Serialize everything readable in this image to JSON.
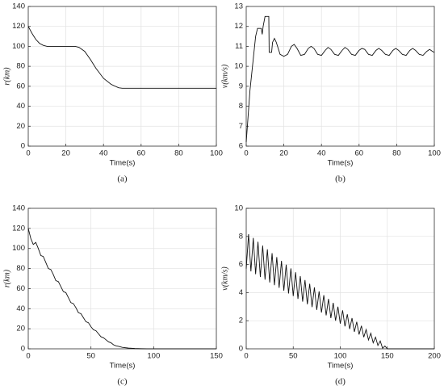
{
  "chart_data": [
    {
      "type": "line",
      "caption": "(a)",
      "xlabel": "Time(s)",
      "ylabel": "r(km)",
      "color": "#111111",
      "grid": true,
      "xlim": [
        0,
        100
      ],
      "ylim": [
        0,
        140
      ],
      "xticks": [
        0,
        20,
        40,
        60,
        80,
        100
      ],
      "yticks": [
        0,
        20,
        40,
        60,
        80,
        100,
        120,
        140
      ],
      "x": [
        0,
        2,
        4,
        6,
        8,
        10,
        15,
        20,
        25,
        27,
        30,
        33,
        36,
        40,
        44,
        48,
        50,
        55,
        60,
        70,
        80,
        90,
        100
      ],
      "values": [
        120,
        113,
        107,
        103,
        101,
        100,
        100,
        100,
        100,
        99,
        95,
        87,
        78,
        68,
        62,
        58.5,
        58,
        58,
        58,
        58,
        58,
        58,
        58
      ]
    },
    {
      "type": "line",
      "caption": "(b)",
      "xlabel": "Time(s)",
      "ylabel": "v(km/s)",
      "color": "#111111",
      "grid": true,
      "xlim": [
        0,
        100
      ],
      "ylim": [
        6,
        13
      ],
      "xticks": [
        0,
        20,
        40,
        60,
        80,
        100
      ],
      "yticks": [
        6,
        7,
        8,
        9,
        10,
        11,
        12,
        13
      ],
      "x": [
        0,
        2,
        4,
        5,
        6,
        8,
        8.5,
        9,
        10,
        12,
        12.2,
        13.5,
        14,
        15,
        16,
        18,
        20,
        22,
        24,
        25.5,
        27,
        29,
        31,
        33,
        34.5,
        36,
        38,
        40,
        42,
        43.5,
        45,
        47,
        49,
        51,
        52.5,
        54,
        56,
        58,
        60,
        61.5,
        63,
        65,
        67,
        69,
        70.5,
        72,
        74,
        76,
        78,
        79.5,
        81,
        83,
        85,
        87,
        88.5,
        90,
        92,
        94,
        96,
        97.5,
        99,
        100
      ],
      "values": [
        6.2,
        8.8,
        10.6,
        11.5,
        11.9,
        11.9,
        11.6,
        12.0,
        12.5,
        12.5,
        10.7,
        10.7,
        11.2,
        11.4,
        11.2,
        10.6,
        10.5,
        10.6,
        11.0,
        11.1,
        10.9,
        10.55,
        10.6,
        10.9,
        11.0,
        10.9,
        10.6,
        10.55,
        10.8,
        10.95,
        10.85,
        10.6,
        10.55,
        10.8,
        10.95,
        10.85,
        10.6,
        10.55,
        10.8,
        10.9,
        10.85,
        10.6,
        10.55,
        10.8,
        10.9,
        10.8,
        10.6,
        10.55,
        10.8,
        10.9,
        10.8,
        10.6,
        10.55,
        10.8,
        10.9,
        10.8,
        10.6,
        10.55,
        10.75,
        10.85,
        10.75,
        10.7
      ]
    },
    {
      "type": "line",
      "caption": "(c)",
      "xlabel": "Time(s)",
      "ylabel": "r(km)",
      "color": "#111111",
      "grid": true,
      "xlim": [
        0,
        150
      ],
      "ylim": [
        0,
        140
      ],
      "xticks": [
        0,
        50,
        100,
        150
      ],
      "yticks": [
        0,
        20,
        40,
        60,
        80,
        100,
        120,
        140
      ],
      "x": [
        0,
        2,
        4,
        6,
        8,
        10,
        12,
        14,
        16,
        18,
        20,
        22,
        24,
        26,
        28,
        30,
        32,
        34,
        36,
        38,
        40,
        42,
        44,
        46,
        48,
        50,
        52,
        54,
        56,
        58,
        60,
        62,
        64,
        66,
        68,
        70,
        72,
        75,
        80,
        85,
        90,
        95,
        150
      ],
      "values": [
        120,
        110,
        104,
        106,
        100,
        93,
        92,
        86,
        80,
        79,
        74,
        68,
        67,
        62,
        57,
        56,
        51,
        46,
        45,
        41,
        36,
        35,
        31,
        27,
        26,
        22,
        19,
        18,
        15,
        12,
        11,
        9,
        7,
        6,
        4,
        3,
        2.5,
        1.5,
        0.7,
        0.3,
        0.1,
        0,
        0
      ]
    },
    {
      "type": "line",
      "caption": "(d)",
      "xlabel": "Time(s)",
      "ylabel": "v(km/s)",
      "color": "#111111",
      "grid": true,
      "xlim": [
        0,
        200
      ],
      "ylim": [
        0,
        10
      ],
      "xticks": [
        0,
        50,
        100,
        150,
        200
      ],
      "yticks": [
        0,
        2,
        4,
        6,
        8,
        10
      ],
      "x": [
        0,
        2.5,
        5,
        7.5,
        10,
        12.5,
        15,
        17.5,
        20,
        22.5,
        25,
        27.5,
        30,
        32.5,
        35,
        37.5,
        40,
        42.5,
        45,
        47.5,
        50,
        52.5,
        55,
        57.5,
        60,
        62.5,
        65,
        67.5,
        70,
        72.5,
        75,
        77.5,
        80,
        82.5,
        85,
        87.5,
        90,
        92.5,
        95,
        97.5,
        100,
        102.5,
        105,
        107.5,
        110,
        112.5,
        115,
        117.5,
        120,
        122.5,
        125,
        127.5,
        130,
        132.5,
        135,
        137.5,
        140,
        142.5,
        145,
        147.5,
        150,
        200
      ],
      "values": [
        5.7,
        8.16,
        5.51,
        7.89,
        5.31,
        7.62,
        5.11,
        7.35,
        4.92,
        7.08,
        4.72,
        6.81,
        4.53,
        6.53,
        4.34,
        6.26,
        4.14,
        5.99,
        3.94,
        5.72,
        3.75,
        5.45,
        3.55,
        5.18,
        3.36,
        4.9,
        3.17,
        4.63,
        2.97,
        4.37,
        2.77,
        4.09,
        2.58,
        3.82,
        2.38,
        3.55,
        2.19,
        3.27,
        2.0,
        3.0,
        1.79,
        2.74,
        1.6,
        2.46,
        1.41,
        2.19,
        1.21,
        1.92,
        1.02,
        1.64,
        0.83,
        1.37,
        0.63,
        1.11,
        0.43,
        0.83,
        0.24,
        0.56,
        0.04,
        0.2,
        0,
        0
      ]
    }
  ]
}
